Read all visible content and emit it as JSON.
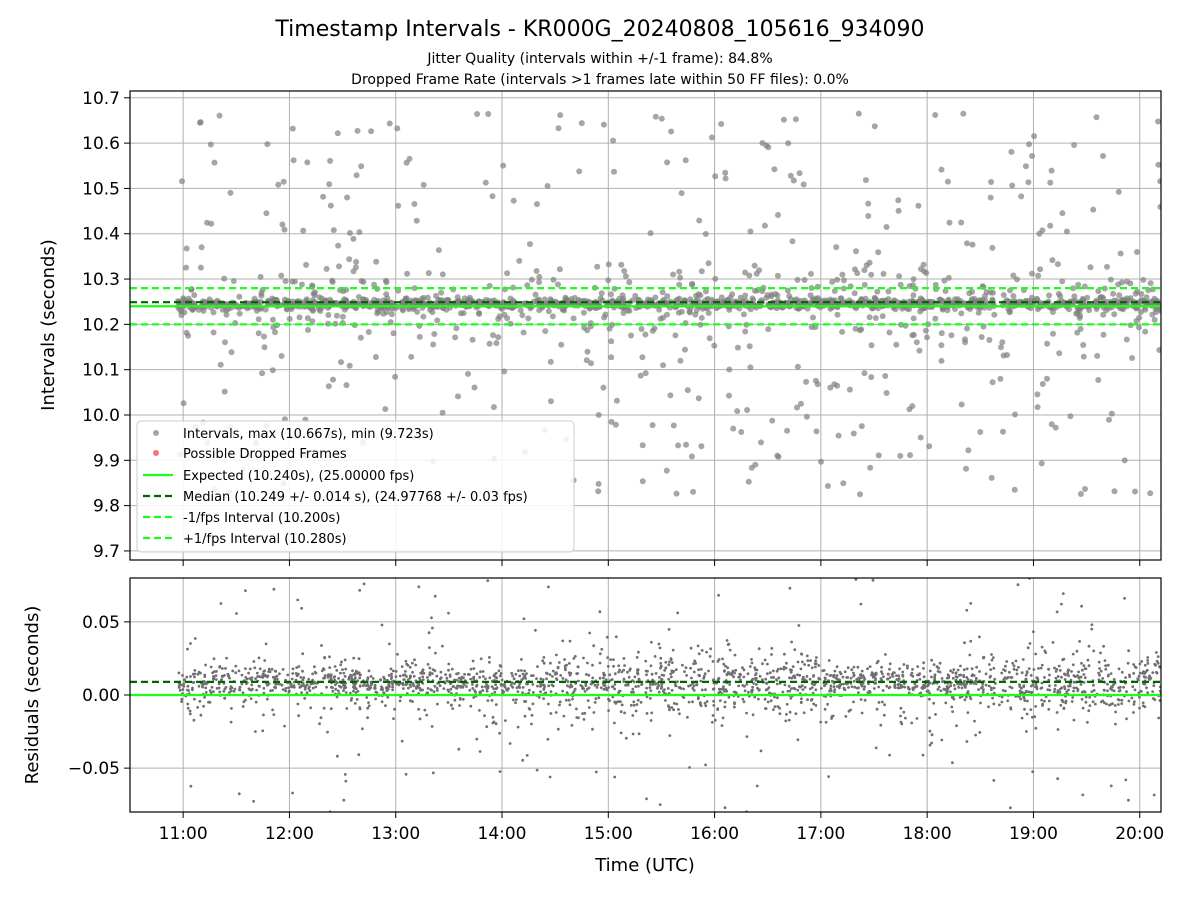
{
  "chart_data": {
    "type": "scatter",
    "title": "Timestamp Intervals - KR000G_20240808_105616_934090",
    "subtitles": [
      "Jitter Quality (intervals within +/-1 frame): 84.8%",
      "Dropped Frame Rate (intervals >1 frames late within 50 FF files): 0.0%"
    ],
    "xlabel": "Time (UTC)",
    "x_ticks": [
      "11:00",
      "12:00",
      "13:00",
      "14:00",
      "15:00",
      "16:00",
      "17:00",
      "18:00",
      "19:00",
      "20:00"
    ],
    "x_range_hours": [
      10.5,
      20.2
    ],
    "grid": true,
    "panels": [
      {
        "ylabel": "Intervals (seconds)",
        "ylim": [
          9.68,
          10.715
        ],
        "y_ticks": [
          "9.7",
          "9.8",
          "9.9",
          "10.0",
          "10.1",
          "10.2",
          "10.3",
          "10.4",
          "10.5",
          "10.6",
          "10.7"
        ],
        "y_tick_values": [
          9.7,
          9.8,
          9.9,
          10.0,
          10.1,
          10.2,
          10.3,
          10.4,
          10.5,
          10.6,
          10.7
        ],
        "series": [
          {
            "name": "Intervals, max (10.667s), min (9.723s)",
            "kind": "scatter",
            "color": "#808080",
            "x_range": [
              10.95,
              20.2
            ],
            "center": 10.245,
            "core_spread": 0.012,
            "count": 1900
          },
          {
            "name": "Possible Dropped Frames",
            "kind": "scatter",
            "color": "#ff4d4d",
            "count": 0
          },
          {
            "name": "Expected (10.240s), (25.00000 fps)",
            "kind": "hline",
            "value": 10.24,
            "color": "#1aff1a",
            "style": "solid"
          },
          {
            "name": "Median (10.249 +/- 0.014 s), (24.97768 +/- 0.03 fps)",
            "kind": "hline",
            "value": 10.249,
            "color": "#006400",
            "style": "dashed"
          },
          {
            "name": "-1/fps Interval (10.200s)",
            "kind": "hline",
            "value": 10.2,
            "color": "#1aff1a",
            "style": "dashed"
          },
          {
            "name": "+1/fps Interval (10.280s)",
            "kind": "hline",
            "value": 10.28,
            "color": "#1aff1a",
            "style": "dashed"
          }
        ],
        "legend_position": "lower-left"
      },
      {
        "ylabel": "Residuals (seconds)",
        "ylim": [
          -0.08,
          0.08
        ],
        "y_ticks": [
          "−0.05",
          "0.00",
          "0.05"
        ],
        "y_tick_values": [
          -0.05,
          0.0,
          0.05
        ],
        "series": [
          {
            "kind": "scatter",
            "color": "#707070",
            "center": 0.009,
            "core_spread": 0.006,
            "count": 2300
          },
          {
            "kind": "hline",
            "value": 0.0,
            "color": "#1aff1a",
            "style": "solid"
          },
          {
            "kind": "hline",
            "value": 0.009,
            "color": "#006400",
            "style": "dashed"
          }
        ]
      }
    ]
  }
}
